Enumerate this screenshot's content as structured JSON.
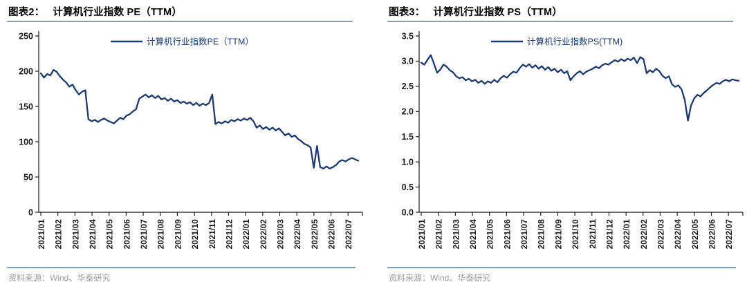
{
  "page": {
    "background": "#ffffff"
  },
  "colors": {
    "series_line": "#1b3a6b",
    "rule_blue": "#7f9db9",
    "axis": "#1a1a1a",
    "tick_label": "#1a1a1a",
    "legend_text": "#1b3a6b",
    "source_text": "#9b9b9b",
    "title_text": "#000000"
  },
  "chart_data": [
    {
      "type": "line",
      "fig_label": "图表2：",
      "title": "计算机行业指数 PE（TTM）",
      "legend": "计算机行业指数PE（TTM）",
      "xlabel": "",
      "ylabel": "",
      "grid": false,
      "legend_position": "top-center",
      "ylim": [
        0,
        250
      ],
      "yticks": [
        250,
        200,
        150,
        100,
        50,
        0
      ],
      "ytick_labels": [
        "250",
        "200",
        "150",
        "100",
        "50",
        "0"
      ],
      "x_ticks": [
        "2021/01",
        "2021/02",
        "2021/03",
        "2021/04",
        "2021/05",
        "2021/06",
        "2021/07",
        "2021/08",
        "2021/09",
        "2021/10",
        "2021/11",
        "2021/12",
        "2022/01",
        "2022/02",
        "2022/03",
        "2022/04",
        "2022/05",
        "2022/06",
        "2022/07"
      ],
      "values": [
        197,
        191,
        196,
        194,
        202,
        199,
        193,
        188,
        184,
        178,
        181,
        173,
        167,
        171,
        173,
        132,
        129,
        131,
        128,
        131,
        133,
        130,
        128,
        126,
        130,
        134,
        132,
        137,
        139,
        143,
        146,
        161,
        164,
        167,
        163,
        166,
        162,
        165,
        160,
        162,
        158,
        161,
        157,
        159,
        155,
        157,
        154,
        156,
        152,
        155,
        151,
        154,
        152,
        155,
        167,
        125,
        128,
        126,
        129,
        127,
        131,
        129,
        132,
        130,
        133,
        131,
        134,
        129,
        120,
        123,
        118,
        121,
        117,
        120,
        116,
        119,
        114,
        109,
        112,
        107,
        109,
        104,
        101,
        97,
        95,
        92,
        63,
        94,
        64,
        62,
        65,
        62,
        64,
        67,
        72,
        74,
        72,
        75,
        77,
        75,
        73
      ],
      "source": "资料来源：Wind、华泰研究"
    },
    {
      "type": "line",
      "fig_label": "图表3：",
      "title": "计算机行业指数 PS（TTM）",
      "legend": "计算机行业指数PS(TTM)",
      "xlabel": "",
      "ylabel": "",
      "grid": false,
      "legend_position": "top-center",
      "ylim": [
        0,
        3.5
      ],
      "yticks": [
        3.5,
        3.0,
        2.5,
        2.0,
        1.5,
        1.0,
        0.5,
        0.0
      ],
      "ytick_labels": [
        "3.5",
        "3.0",
        "2.5",
        "2.0",
        "1.5",
        "1.0",
        "0.5",
        "0.0"
      ],
      "x_ticks": [
        "2021/01",
        "2021/02",
        "2021/03",
        "2021/04",
        "2021/05",
        "2021/06",
        "2021/07",
        "2021/08",
        "2021/09",
        "2021/10",
        "2021/11",
        "2021/12",
        "2022/01",
        "2022/02",
        "2022/03",
        "2022/04",
        "2022/05",
        "2022/06",
        "2022/07"
      ],
      "values": [
        2.97,
        2.93,
        3.03,
        3.12,
        2.95,
        2.77,
        2.83,
        2.93,
        2.89,
        2.82,
        2.78,
        2.7,
        2.66,
        2.68,
        2.62,
        2.65,
        2.6,
        2.63,
        2.57,
        2.61,
        2.55,
        2.6,
        2.57,
        2.63,
        2.58,
        2.66,
        2.71,
        2.67,
        2.74,
        2.79,
        2.77,
        2.86,
        2.93,
        2.89,
        2.94,
        2.87,
        2.92,
        2.85,
        2.9,
        2.83,
        2.88,
        2.81,
        2.85,
        2.78,
        2.83,
        2.76,
        2.8,
        2.62,
        2.7,
        2.76,
        2.8,
        2.74,
        2.79,
        2.82,
        2.85,
        2.89,
        2.86,
        2.92,
        2.95,
        2.93,
        2.98,
        3.02,
        2.99,
        3.04,
        3.0,
        3.05,
        3.02,
        3.07,
        2.96,
        3.08,
        3.04,
        2.76,
        2.82,
        2.78,
        2.85,
        2.8,
        2.71,
        2.66,
        2.7,
        2.54,
        2.49,
        2.52,
        2.44,
        2.23,
        1.82,
        2.12,
        2.26,
        2.33,
        2.3,
        2.37,
        2.42,
        2.48,
        2.53,
        2.57,
        2.55,
        2.6,
        2.63,
        2.6,
        2.64,
        2.62,
        2.61
      ],
      "source": "资料来源：Wind、华泰研究"
    }
  ]
}
